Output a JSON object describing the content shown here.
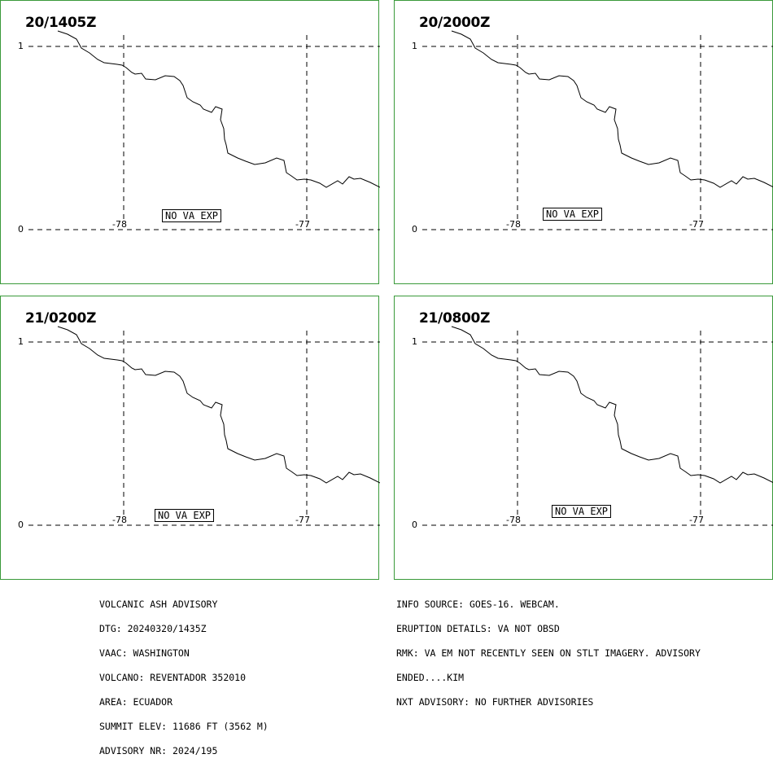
{
  "panels": [
    {
      "time": "20/1405Z",
      "badge": "NO VA EXP"
    },
    {
      "time": "20/2000Z",
      "badge": "NO VA EXP"
    },
    {
      "time": "21/0200Z",
      "badge": "NO VA EXP"
    },
    {
      "time": "21/0800Z",
      "badge": "NO VA EXP"
    }
  ],
  "map_labels": {
    "lat_top": "1",
    "lat_bottom": "0",
    "lon_left": "-78",
    "lon_right": "-77"
  },
  "advisory_left": [
    "VOLCANIC ASH ADVISORY",
    "DTG: 20240320/1435Z",
    "VAAC: WASHINGTON",
    "VOLCANO: REVENTADOR 352010",
    "AREA: ECUADOR",
    "SUMMIT ELEV: 11686 FT (3562 M)",
    "ADVISORY NR: 2024/195"
  ],
  "advisory_right": [
    "INFO SOURCE: GOES-16. WEBCAM.",
    "ERUPTION DETAILS: VA NOT OBSD",
    "RMK: VA EM NOT RECENTLY SEEN ON STLT IMAGERY. ADVISORY",
    "ENDED....KIM",
    "NXT ADVISORY: NO FURTHER ADVISORIES"
  ],
  "colors": {
    "panel_border": "#3a9a3a",
    "lines": "#000000",
    "background": "#ffffff"
  }
}
